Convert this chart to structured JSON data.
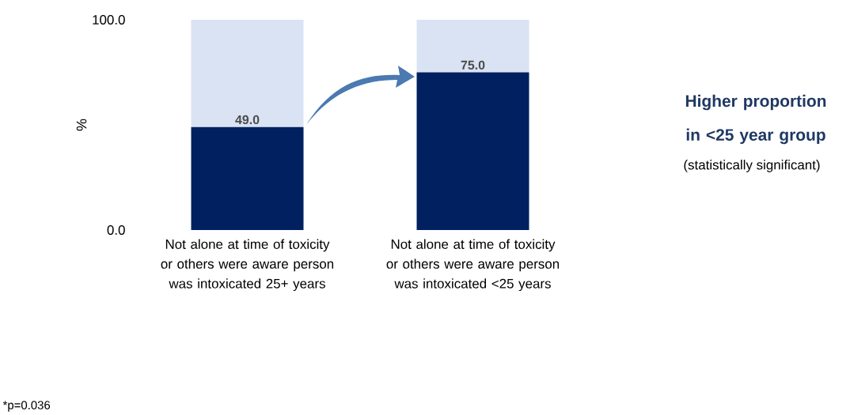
{
  "chart_data": {
    "type": "bar",
    "stacked": true,
    "categories": [
      "Not alone at time of toxicity or others were aware person was intoxicated 25+ years",
      "Not alone at time of toxicity or others were aware person was intoxicated <25 years"
    ],
    "series": [
      {
        "color": "#002060",
        "values": [
          49,
          75
        ],
        "value_labels": [
          "49.0",
          "75.0"
        ]
      },
      {
        "color": "#dae3f3",
        "values": [
          51,
          25
        ]
      }
    ],
    "ylabel": "%",
    "ylim": [
      0,
      100
    ],
    "yticks": [
      {
        "value": 0,
        "label": "0.0"
      },
      {
        "value": 100,
        "label": "100.0"
      }
    ],
    "annotations": [
      "Higher proportion in <25 year group",
      "(statistically significant)",
      "*p=0.036"
    ]
  }
}
